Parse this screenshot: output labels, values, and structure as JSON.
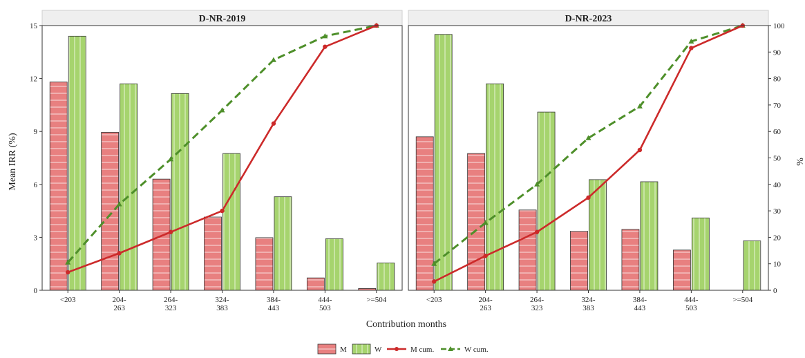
{
  "chart_data": {
    "type": "bar",
    "xlabel": "Contribution months",
    "ylabel": "Mean IRR (%)",
    "y2label": "%",
    "ylim": [
      0,
      15
    ],
    "yticks": [
      0,
      3,
      6,
      9,
      12,
      15
    ],
    "y2lim": [
      0,
      100
    ],
    "y2ticks": [
      0,
      10,
      20,
      30,
      40,
      50,
      60,
      70,
      80,
      90,
      100
    ],
    "categories": [
      [
        "<203"
      ],
      [
        "204-",
        "263"
      ],
      [
        "264-",
        "323"
      ],
      [
        "324-",
        "383"
      ],
      [
        "384-",
        "443"
      ],
      [
        "444-",
        "503"
      ],
      [
        ">=504"
      ]
    ],
    "legend_position": "bottom",
    "legend": [
      {
        "key": "M",
        "label": "M",
        "kind": "bar",
        "color": "#e88080"
      },
      {
        "key": "W",
        "label": "W",
        "kind": "bar",
        "color": "#a6d46e"
      },
      {
        "key": "Mcum",
        "label": "M cum.",
        "kind": "line",
        "color": "#cc2a2a"
      },
      {
        "key": "Wcum",
        "label": "W cum.",
        "kind": "dashed",
        "color": "#4e8f2a"
      }
    ],
    "colors": {
      "m_fill": "#e88080",
      "w_fill": "#a6d46e",
      "m_line": "#cc2a2a",
      "w_line": "#4e8f2a",
      "strip_bg": "#efefef"
    },
    "panels": [
      {
        "title": "D-NR-2019",
        "bars": {
          "M": [
            11.8,
            8.95,
            6.3,
            4.15,
            2.98,
            0.7,
            0.1
          ],
          "W": [
            14.4,
            11.7,
            11.15,
            7.75,
            5.3,
            2.92,
            1.55
          ]
        },
        "cum": {
          "M": [
            6.8,
            14,
            22,
            30,
            63,
            92,
            100
          ],
          "W": [
            10.5,
            32.5,
            49.5,
            68,
            87,
            96,
            100
          ]
        }
      },
      {
        "title": "D-NR-2023",
        "bars": {
          "M": [
            8.7,
            7.75,
            4.55,
            3.35,
            3.45,
            2.28,
            0
          ],
          "W": [
            14.5,
            11.7,
            10.1,
            6.27,
            6.15,
            4.1,
            2.8
          ]
        },
        "cum": {
          "M": [
            3.3,
            13,
            22,
            35,
            53,
            91.5,
            100
          ],
          "W": [
            10,
            25.5,
            40,
            57.5,
            69.5,
            94,
            100
          ]
        }
      }
    ]
  }
}
